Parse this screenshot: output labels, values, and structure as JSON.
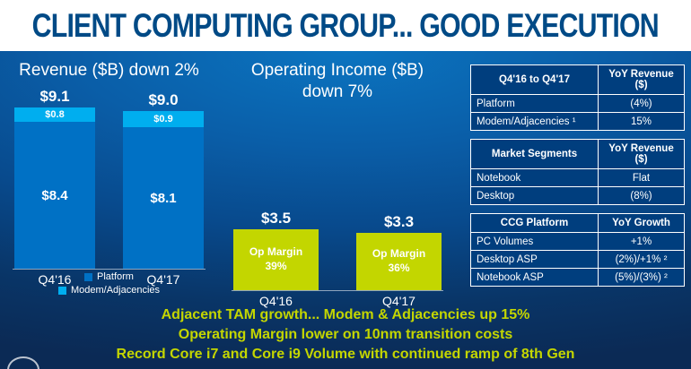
{
  "slide": {
    "title": "CLIENT COMPUTING GROUP... GOOD EXECUTION"
  },
  "revenue_chart": {
    "title": "Revenue ($B) down 2%",
    "bars": [
      {
        "category": "Q4'16",
        "total": "$9.1",
        "modem": "$0.8",
        "platform": "$8.4"
      },
      {
        "category": "Q4'17",
        "total": "$9.0",
        "modem": "$0.9",
        "platform": "$8.1"
      }
    ],
    "legend": [
      {
        "label": "Platform",
        "color": "#0071c5"
      },
      {
        "label": "Modem/Adjacencies",
        "color": "#00aeef"
      }
    ]
  },
  "op_income_chart": {
    "title": "Operating Income ($B) down 7%",
    "bars": [
      {
        "category": "Q4'16",
        "total": "$3.5",
        "margin_line1": "Op Margin",
        "margin_line2": "39%"
      },
      {
        "category": "Q4'17",
        "total": "$3.3",
        "margin_line1": "Op Margin",
        "margin_line2": "36%"
      }
    ]
  },
  "tables": [
    {
      "headers": [
        "Q4'16 to Q4'17",
        "YoY Revenue ($)"
      ],
      "rows": [
        [
          "Platform",
          "(4%)"
        ],
        [
          "Modem/Adjacencies ¹",
          "15%"
        ]
      ]
    },
    {
      "headers": [
        "Market Segments",
        "YoY Revenue ($)"
      ],
      "rows": [
        [
          "Notebook",
          "Flat"
        ],
        [
          "Desktop",
          "(8%)"
        ]
      ]
    },
    {
      "headers": [
        "CCG Platform",
        "YoY Growth"
      ],
      "rows": [
        [
          "PC Volumes",
          "+1%"
        ],
        [
          "Desktop ASP",
          "(2%)/+1% ²"
        ],
        [
          "Notebook ASP",
          "(5%)/(3%) ²"
        ]
      ]
    }
  ],
  "footer_lines": [
    "Adjacent TAM growth... Modem & Adjacencies up 15%",
    "Operating Margin lower on 10nm transition costs",
    "Record Core i7 and Core i9 Volume with continued ramp of 8th Gen"
  ],
  "colors": {
    "title_blue": "#004a86",
    "platform_bar": "#0071c5",
    "modem_bar": "#00aeef",
    "op_income_bar": "#c3d600",
    "accent_yellow": "#c4d600"
  },
  "chart_data": [
    {
      "type": "bar",
      "stacked": true,
      "title": "Revenue ($B) down 2%",
      "categories": [
        "Q4'16",
        "Q4'17"
      ],
      "series": [
        {
          "name": "Platform",
          "values": [
            8.4,
            8.1
          ]
        },
        {
          "name": "Modem/Adjacencies",
          "values": [
            0.8,
            0.9
          ]
        }
      ],
      "totals": [
        9.1,
        9.0
      ],
      "ylim": [
        0,
        10
      ],
      "grid": false,
      "legend_position": "bottom"
    },
    {
      "type": "bar",
      "title": "Operating Income ($B) down 7%",
      "categories": [
        "Q4'16",
        "Q4'17"
      ],
      "values": [
        3.5,
        3.3
      ],
      "data_labels": [
        "$3.5",
        "$3.3"
      ],
      "annotations": [
        "Op Margin 39%",
        "Op Margin 36%"
      ],
      "ylim": [
        0,
        10
      ],
      "grid": false
    },
    {
      "type": "table",
      "columns": [
        "Q4'16 to Q4'17",
        "YoY Revenue ($)"
      ],
      "rows": [
        [
          "Platform",
          "(4%)"
        ],
        [
          "Modem/Adjacencies ¹",
          "15%"
        ]
      ]
    },
    {
      "type": "table",
      "columns": [
        "Market Segments",
        "YoY Revenue ($)"
      ],
      "rows": [
        [
          "Notebook",
          "Flat"
        ],
        [
          "Desktop",
          "(8%)"
        ]
      ]
    },
    {
      "type": "table",
      "columns": [
        "CCG Platform",
        "YoY Growth"
      ],
      "rows": [
        [
          "PC Volumes",
          "+1%"
        ],
        [
          "Desktop ASP",
          "(2%)/+1% ²"
        ],
        [
          "Notebook ASP",
          "(5%)/(3%) ²"
        ]
      ]
    }
  ]
}
